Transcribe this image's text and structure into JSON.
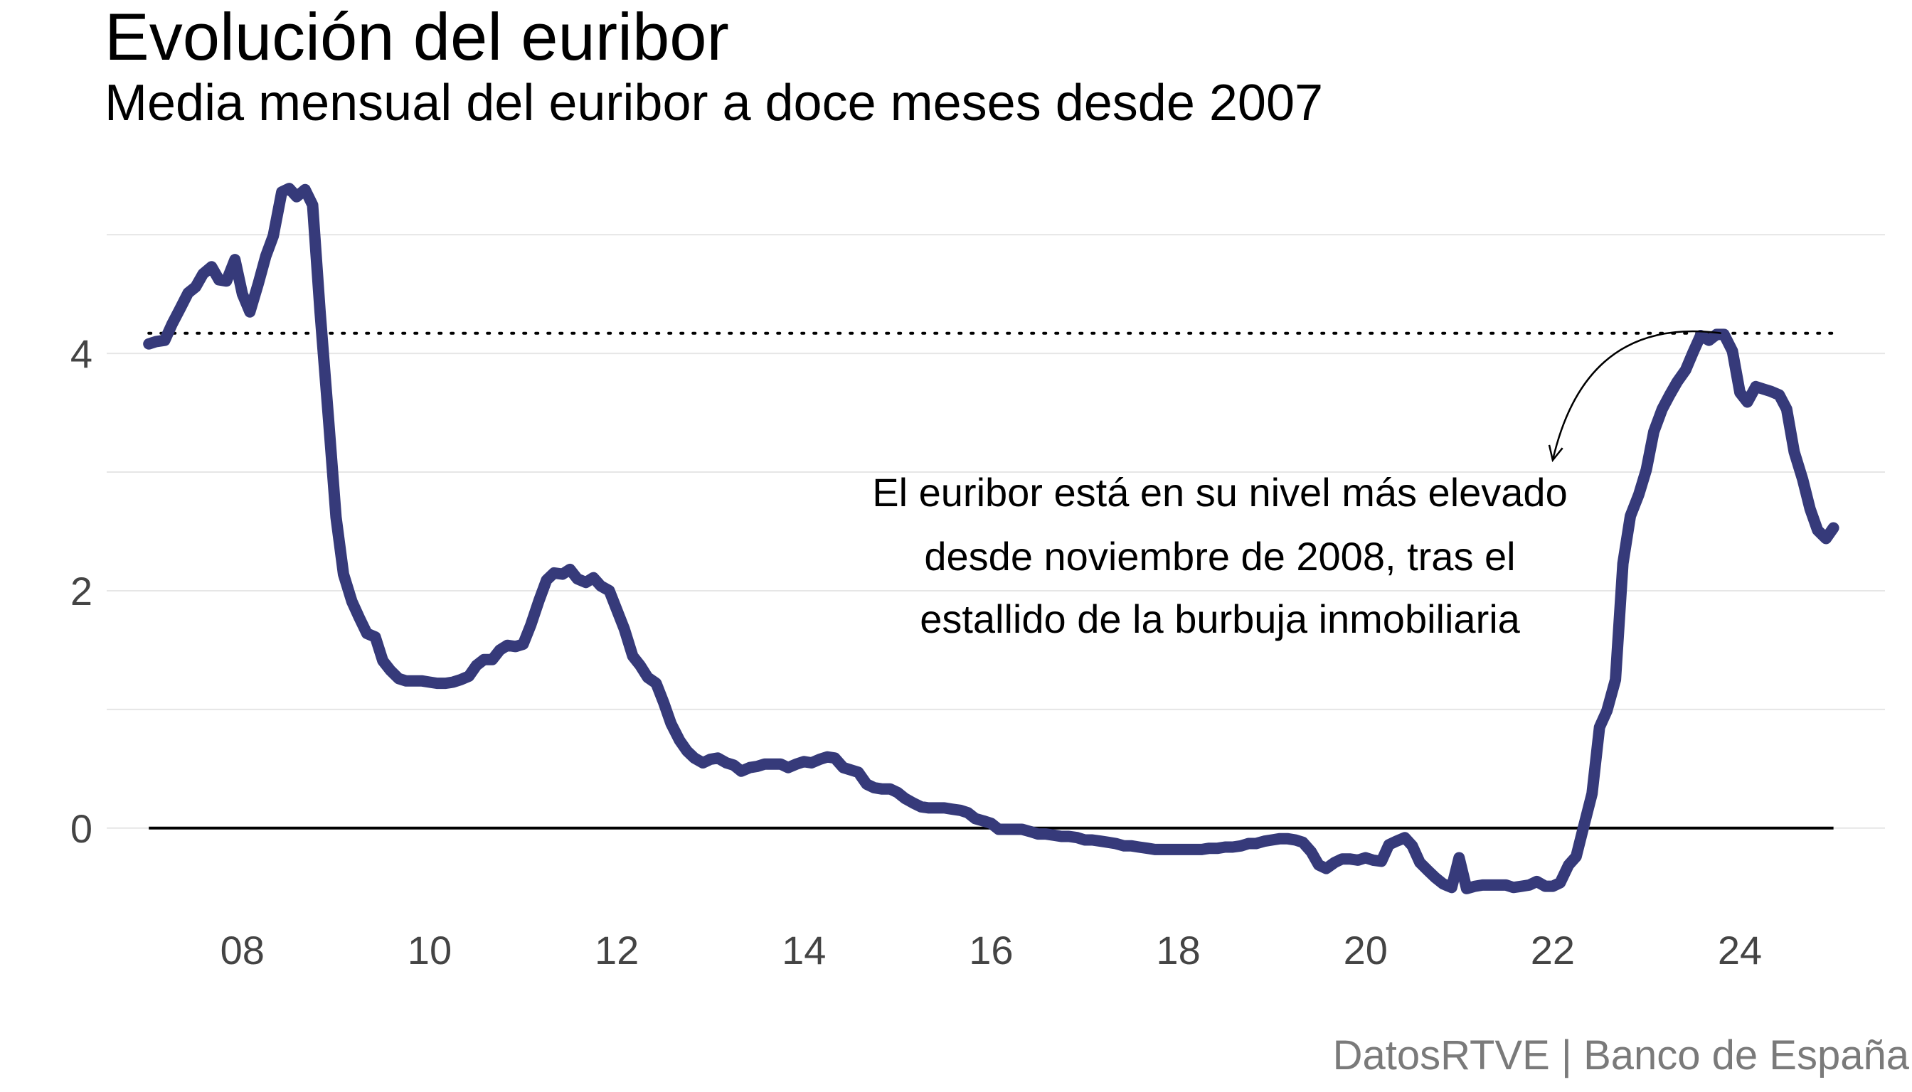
{
  "title": "Evolución del euribor",
  "subtitle": "Media mensual del euribor a doce meses desde 2007",
  "caption": "DatosRTVE | Banco de España",
  "annotation": {
    "lines": [
      "El euribor está en su nivel más elevado",
      "desde noviembre de 2008, tras el",
      "estallido de la burbuja inmobiliaria"
    ],
    "arrow_from": {
      "x": 2023.8,
      "y": 4.17
    },
    "arrow_to": {
      "x": 2022.0,
      "y": 3.1
    }
  },
  "colors": {
    "line": "#363a7a",
    "zero_line": "#000000",
    "reference_line": "#000000",
    "grid": "#e6e6e6",
    "tick_text": "#444444",
    "caption": "#7a7a7a"
  },
  "chart_data": {
    "type": "line",
    "title": "Evolución del euribor",
    "subtitle": "Media mensual del euribor a doce meses desde 2007",
    "x_unit": "year",
    "xlabel": "",
    "ylabel": "",
    "xlim": [
      2006.55,
      2025.55
    ],
    "ylim": [
      -0.75,
      5.6
    ],
    "xticks": [
      2008,
      2010,
      2012,
      2014,
      2016,
      2018,
      2020,
      2022,
      2024
    ],
    "xtick_labels": [
      "08",
      "10",
      "12",
      "14",
      "16",
      "18",
      "20",
      "22",
      "24"
    ],
    "yticks": [
      0,
      2,
      4
    ],
    "ytick_labels": [
      "0",
      "2",
      "4"
    ],
    "minor_gridlines_y": [
      1,
      3,
      5
    ],
    "grid": true,
    "legend": "none",
    "reference_lines": [
      {
        "y": 0,
        "style": "solid",
        "x_range": [
          2007.0,
          2025.0
        ]
      },
      {
        "y": 4.17,
        "style": "dotted",
        "x_range": [
          2007.0,
          2025.0
        ]
      }
    ],
    "series": [
      {
        "values": [
          [
            2007.0,
            4.08
          ],
          [
            2007.08,
            4.1
          ],
          [
            2007.17,
            4.11
          ],
          [
            2007.25,
            4.25
          ],
          [
            2007.33,
            4.37
          ],
          [
            2007.42,
            4.51
          ],
          [
            2007.5,
            4.56
          ],
          [
            2007.58,
            4.67
          ],
          [
            2007.67,
            4.73
          ],
          [
            2007.75,
            4.62
          ],
          [
            2007.83,
            4.61
          ],
          [
            2007.92,
            4.79
          ],
          [
            2008.0,
            4.5
          ],
          [
            2008.08,
            4.35
          ],
          [
            2008.17,
            4.59
          ],
          [
            2008.25,
            4.82
          ],
          [
            2008.33,
            4.99
          ],
          [
            2008.42,
            5.36
          ],
          [
            2008.5,
            5.39
          ],
          [
            2008.58,
            5.32
          ],
          [
            2008.67,
            5.38
          ],
          [
            2008.75,
            5.25
          ],
          [
            2008.83,
            4.35
          ],
          [
            2008.92,
            3.45
          ],
          [
            2009.0,
            2.62
          ],
          [
            2009.08,
            2.14
          ],
          [
            2009.17,
            1.91
          ],
          [
            2009.25,
            1.77
          ],
          [
            2009.33,
            1.64
          ],
          [
            2009.42,
            1.61
          ],
          [
            2009.5,
            1.41
          ],
          [
            2009.58,
            1.33
          ],
          [
            2009.67,
            1.26
          ],
          [
            2009.75,
            1.24
          ],
          [
            2009.83,
            1.24
          ],
          [
            2009.92,
            1.24
          ],
          [
            2010.0,
            1.23
          ],
          [
            2010.08,
            1.22
          ],
          [
            2010.17,
            1.22
          ],
          [
            2010.25,
            1.23
          ],
          [
            2010.33,
            1.25
          ],
          [
            2010.42,
            1.28
          ],
          [
            2010.5,
            1.37
          ],
          [
            2010.58,
            1.42
          ],
          [
            2010.67,
            1.42
          ],
          [
            2010.75,
            1.5
          ],
          [
            2010.83,
            1.54
          ],
          [
            2010.92,
            1.53
          ],
          [
            2011.0,
            1.55
          ],
          [
            2011.08,
            1.71
          ],
          [
            2011.17,
            1.92
          ],
          [
            2011.25,
            2.09
          ],
          [
            2011.33,
            2.15
          ],
          [
            2011.42,
            2.14
          ],
          [
            2011.5,
            2.18
          ],
          [
            2011.58,
            2.1
          ],
          [
            2011.67,
            2.07
          ],
          [
            2011.75,
            2.11
          ],
          [
            2011.83,
            2.04
          ],
          [
            2011.92,
            2.0
          ],
          [
            2012.0,
            1.84
          ],
          [
            2012.08,
            1.68
          ],
          [
            2012.17,
            1.45
          ],
          [
            2012.25,
            1.37
          ],
          [
            2012.33,
            1.27
          ],
          [
            2012.42,
            1.22
          ],
          [
            2012.5,
            1.06
          ],
          [
            2012.58,
            0.88
          ],
          [
            2012.67,
            0.74
          ],
          [
            2012.75,
            0.65
          ],
          [
            2012.83,
            0.59
          ],
          [
            2012.92,
            0.55
          ],
          [
            2013.0,
            0.58
          ],
          [
            2013.08,
            0.59
          ],
          [
            2013.17,
            0.55
          ],
          [
            2013.25,
            0.53
          ],
          [
            2013.33,
            0.48
          ],
          [
            2013.42,
            0.51
          ],
          [
            2013.5,
            0.52
          ],
          [
            2013.58,
            0.54
          ],
          [
            2013.67,
            0.54
          ],
          [
            2013.75,
            0.54
          ],
          [
            2013.83,
            0.51
          ],
          [
            2013.92,
            0.54
          ],
          [
            2014.0,
            0.56
          ],
          [
            2014.08,
            0.55
          ],
          [
            2014.17,
            0.58
          ],
          [
            2014.25,
            0.6
          ],
          [
            2014.33,
            0.59
          ],
          [
            2014.42,
            0.51
          ],
          [
            2014.5,
            0.49
          ],
          [
            2014.58,
            0.47
          ],
          [
            2014.67,
            0.37
          ],
          [
            2014.75,
            0.34
          ],
          [
            2014.83,
            0.33
          ],
          [
            2014.92,
            0.33
          ],
          [
            2015.0,
            0.3
          ],
          [
            2015.08,
            0.25
          ],
          [
            2015.17,
            0.21
          ],
          [
            2015.25,
            0.18
          ],
          [
            2015.33,
            0.17
          ],
          [
            2015.42,
            0.17
          ],
          [
            2015.5,
            0.17
          ],
          [
            2015.58,
            0.16
          ],
          [
            2015.67,
            0.15
          ],
          [
            2015.75,
            0.13
          ],
          [
            2015.83,
            0.08
          ],
          [
            2015.92,
            0.06
          ],
          [
            2016.0,
            0.04
          ],
          [
            2016.08,
            -0.01
          ],
          [
            2016.17,
            -0.01
          ],
          [
            2016.25,
            -0.01
          ],
          [
            2016.33,
            -0.01
          ],
          [
            2016.42,
            -0.03
          ],
          [
            2016.5,
            -0.05
          ],
          [
            2016.58,
            -0.05
          ],
          [
            2016.67,
            -0.06
          ],
          [
            2016.75,
            -0.07
          ],
          [
            2016.83,
            -0.07
          ],
          [
            2016.92,
            -0.08
          ],
          [
            2017.0,
            -0.1
          ],
          [
            2017.08,
            -0.1
          ],
          [
            2017.17,
            -0.11
          ],
          [
            2017.25,
            -0.12
          ],
          [
            2017.33,
            -0.13
          ],
          [
            2017.42,
            -0.15
          ],
          [
            2017.5,
            -0.15
          ],
          [
            2017.58,
            -0.16
          ],
          [
            2017.67,
            -0.17
          ],
          [
            2017.75,
            -0.18
          ],
          [
            2017.83,
            -0.18
          ],
          [
            2017.92,
            -0.18
          ],
          [
            2018.0,
            -0.18
          ],
          [
            2018.08,
            -0.18
          ],
          [
            2018.17,
            -0.18
          ],
          [
            2018.25,
            -0.18
          ],
          [
            2018.33,
            -0.17
          ],
          [
            2018.42,
            -0.17
          ],
          [
            2018.5,
            -0.16
          ],
          [
            2018.58,
            -0.16
          ],
          [
            2018.67,
            -0.15
          ],
          [
            2018.75,
            -0.13
          ],
          [
            2018.83,
            -0.13
          ],
          [
            2018.92,
            -0.11
          ],
          [
            2019.0,
            -0.1
          ],
          [
            2019.08,
            -0.09
          ],
          [
            2019.17,
            -0.09
          ],
          [
            2019.25,
            -0.1
          ],
          [
            2019.33,
            -0.12
          ],
          [
            2019.42,
            -0.2
          ],
          [
            2019.5,
            -0.31
          ],
          [
            2019.58,
            -0.34
          ],
          [
            2019.67,
            -0.29
          ],
          [
            2019.75,
            -0.26
          ],
          [
            2019.83,
            -0.26
          ],
          [
            2019.92,
            -0.27
          ],
          [
            2020.0,
            -0.25
          ],
          [
            2020.08,
            -0.27
          ],
          [
            2020.17,
            -0.28
          ],
          [
            2020.25,
            -0.14
          ],
          [
            2020.33,
            -0.11
          ],
          [
            2020.42,
            -0.08
          ],
          [
            2020.5,
            -0.15
          ],
          [
            2020.58,
            -0.29
          ],
          [
            2020.67,
            -0.36
          ],
          [
            2020.75,
            -0.42
          ],
          [
            2020.83,
            -0.47
          ],
          [
            2020.92,
            -0.5
          ],
          [
            2021.0,
            -0.25
          ],
          [
            2021.08,
            -0.51
          ],
          [
            2021.17,
            -0.49
          ],
          [
            2021.25,
            -0.48
          ],
          [
            2021.33,
            -0.48
          ],
          [
            2021.42,
            -0.48
          ],
          [
            2021.5,
            -0.48
          ],
          [
            2021.58,
            -0.5
          ],
          [
            2021.67,
            -0.49
          ],
          [
            2021.75,
            -0.48
          ],
          [
            2021.83,
            -0.45
          ],
          [
            2021.92,
            -0.49
          ],
          [
            2022.0,
            -0.49
          ],
          [
            2022.08,
            -0.46
          ],
          [
            2022.17,
            -0.31
          ],
          [
            2022.25,
            -0.24
          ],
          [
            2022.33,
            0.01
          ],
          [
            2022.42,
            0.29
          ],
          [
            2022.5,
            0.85
          ],
          [
            2022.58,
            0.99
          ],
          [
            2022.67,
            1.25
          ],
          [
            2022.75,
            2.23
          ],
          [
            2022.83,
            2.63
          ],
          [
            2022.92,
            2.81
          ],
          [
            2023.0,
            3.02
          ],
          [
            2023.08,
            3.34
          ],
          [
            2023.17,
            3.53
          ],
          [
            2023.25,
            3.65
          ],
          [
            2023.33,
            3.76
          ],
          [
            2023.42,
            3.86
          ],
          [
            2023.5,
            4.01
          ],
          [
            2023.58,
            4.15
          ],
          [
            2023.67,
            4.11
          ],
          [
            2023.75,
            4.16
          ],
          [
            2023.83,
            4.16
          ],
          [
            2023.92,
            4.02
          ],
          [
            2024.0,
            3.67
          ],
          [
            2024.08,
            3.59
          ],
          [
            2024.17,
            3.72
          ],
          [
            2024.25,
            3.7
          ],
          [
            2024.33,
            3.68
          ],
          [
            2024.42,
            3.65
          ],
          [
            2024.5,
            3.53
          ],
          [
            2024.58,
            3.17
          ],
          [
            2024.67,
            2.94
          ],
          [
            2024.75,
            2.69
          ],
          [
            2024.83,
            2.51
          ],
          [
            2024.92,
            2.44
          ],
          [
            2025.0,
            2.53
          ]
        ]
      }
    ]
  }
}
